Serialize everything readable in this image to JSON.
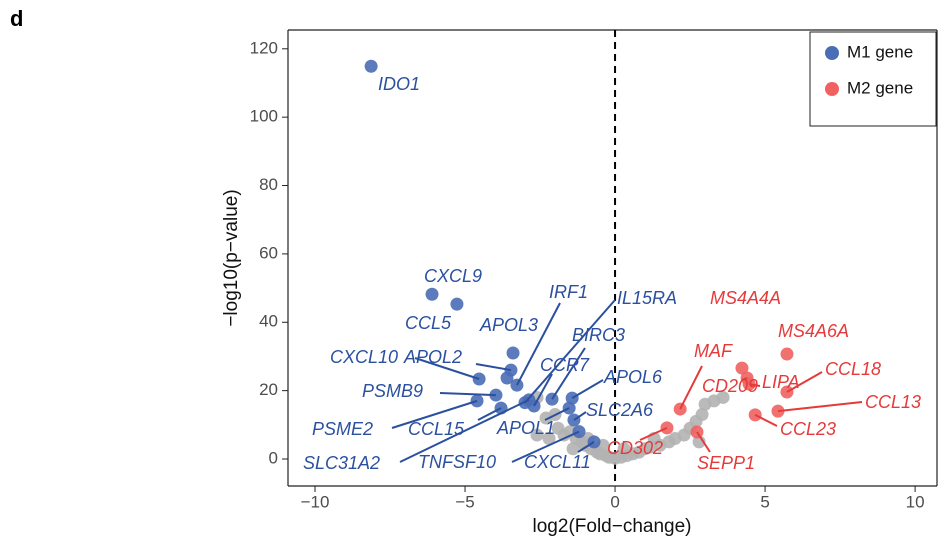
{
  "panel_label": "d",
  "chart_data": {
    "type": "scatter",
    "xlabel": "log2(Fold−change)",
    "ylabel": "−log10(p−value)",
    "xlim": [
      -10.9,
      10.73
    ],
    "ylim": [
      -7.9,
      125.5
    ],
    "xticks": [
      {
        "value": -10,
        "label": "−10"
      },
      {
        "value": -5,
        "label": "−5"
      },
      0,
      5,
      10
    ],
    "yticks": [
      0,
      20,
      40,
      60,
      80,
      100,
      120
    ],
    "vline_x": 0,
    "legend": "upper right",
    "series": [
      {
        "name": "M1 gene",
        "color": "#4a6db5",
        "label_color": "#2b50a0",
        "x": [
          -8.13,
          -6.1,
          -5.27,
          -3.4,
          -3.47,
          -4.53,
          -3.27,
          -3.97,
          -4.6,
          -3.8,
          -2.87,
          -2.7,
          -2.1,
          -1.53,
          -1.43,
          -1.37,
          -1.2,
          -0.7,
          -3.0,
          -3.6
        ],
        "values": [
          114.9,
          48.2,
          45.3,
          31,
          26,
          23.4,
          21.6,
          18.7,
          17,
          14.9,
          17.3,
          15.5,
          17.5,
          14.9,
          17.8,
          11.4,
          8,
          5,
          16.5,
          23.7
        ],
        "labels": [
          "IDO1",
          "CXCL9",
          "CCL5",
          "APOL3",
          "APOL2",
          "CXCL10",
          "IRF1",
          "PSMB9",
          "PSME2",
          "CCL15",
          "SLC31A2",
          "CCR7",
          "BIRC3",
          "APOL1",
          "APOL6",
          "SLC2A6",
          "TNFSF10",
          "CXCL11",
          "IL15RA",
          null
        ]
      },
      {
        "name": "M2 gene",
        "color": "#f06261",
        "label_color": "#e63a3a",
        "x": [
          4.23,
          4.4,
          5.73,
          5.73,
          4.47,
          5.43,
          4.67,
          2.17,
          1.73,
          2.73
        ],
        "values": [
          26.6,
          23.7,
          30.7,
          19.6,
          21.9,
          14,
          12.9,
          14.6,
          9.1,
          7.9
        ],
        "labels": [
          "MS4A4A",
          "CD209",
          "MS4A6A",
          "CCL18",
          "LIPA",
          "CCL13",
          "CCL23",
          "MAF",
          "CD302",
          "SEPP1"
        ]
      },
      {
        "color": "#b3b3b3",
        "x": [
          -2.6,
          -2.3,
          -2.0,
          -1.9,
          -1.7,
          -2.6,
          -2.2,
          -1.5,
          -1.3,
          -1.1,
          -1.0,
          -0.8,
          -0.6,
          -0.5,
          -0.3,
          -0.2,
          0,
          0.2,
          0.4,
          0.6,
          0.8,
          1.0,
          1.2,
          1.5,
          1.8,
          2.0,
          2.3,
          2.5,
          2.7,
          2.9,
          3.0,
          3.3,
          3.6,
          2.8,
          -1.4,
          -0.9,
          -0.4,
          0.3,
          1.3
        ],
        "values": [
          18,
          12,
          13,
          9,
          7,
          7,
          6,
          8,
          6,
          5,
          4,
          3,
          2,
          1.5,
          1,
          0.5,
          0.2,
          0.5,
          1,
          1.5,
          2,
          3,
          3.5,
          4,
          5,
          6,
          7,
          9,
          11,
          13,
          16,
          17,
          18,
          5,
          3,
          6,
          4,
          3,
          6
        ]
      }
    ]
  }
}
